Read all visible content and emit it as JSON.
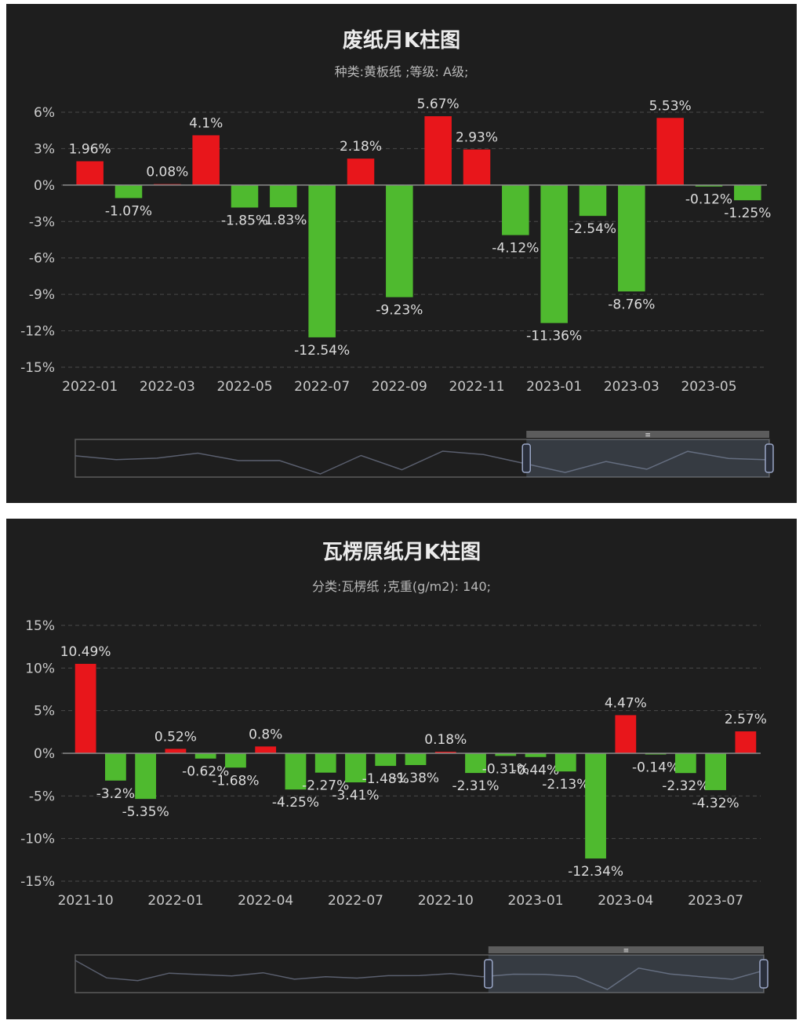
{
  "chart_data": [
    {
      "type": "bar",
      "title": "废纸月K柱图",
      "subtitle": "种类:黄板纸 ;等级: A级;",
      "categories": [
        "2022-01",
        "2022-02",
        "2022-03",
        "2022-04",
        "2022-05",
        "2022-06",
        "2022-07",
        "2022-08",
        "2022-09",
        "2022-10",
        "2022-11",
        "2022-12",
        "2023-01",
        "2023-02",
        "2023-03",
        "2023-04",
        "2023-05",
        "2023-06"
      ],
      "values": [
        1.96,
        -1.07,
        0.08,
        4.1,
        -1.85,
        -1.83,
        -12.54,
        2.18,
        -9.23,
        5.67,
        2.93,
        -4.12,
        -11.36,
        -2.54,
        -8.76,
        5.53,
        -0.12,
        -1.25
      ],
      "data_labels": [
        "1.96%",
        "-1.07%",
        "0.08%",
        "4.1%",
        "-1.85%",
        "-1.83%",
        "-12.54%",
        "2.18%",
        "-9.23%",
        "5.67%",
        "2.93%",
        "-4.12%",
        "-11.36%",
        "-2.54%",
        "-8.76%",
        "5.53%",
        "-0.12%",
        "-1.25%"
      ],
      "x_tick_labels": [
        "2022-01",
        "2022-03",
        "2022-05",
        "2022-07",
        "2022-09",
        "2022-11",
        "2023-01",
        "2023-03",
        "2023-05"
      ],
      "y_ticks": [
        6,
        3,
        0,
        -3,
        -6,
        -9,
        -12,
        -15
      ],
      "y_tick_labels": [
        "6%",
        "3%",
        "0%",
        "-3%",
        "-6%",
        "-9%",
        "-12%",
        "-15%"
      ],
      "ylim": [
        -15,
        6
      ],
      "grid": true,
      "legend": "none",
      "colors": {
        "positive": "#e8161b",
        "negative": "#4fba2f"
      },
      "zoom_window": {
        "start": 0.65,
        "end": 1.0
      }
    },
    {
      "type": "bar",
      "title": "瓦楞原纸月K柱图",
      "subtitle": "分类:瓦楞纸 ;克重(g/m2): 140;",
      "categories": [
        "2021-10",
        "2021-11",
        "2021-12",
        "2022-01",
        "2022-02",
        "2022-03",
        "2022-04",
        "2022-05",
        "2022-06",
        "2022-07",
        "2022-08",
        "2022-09",
        "2022-10",
        "2022-11",
        "2022-12",
        "2023-01",
        "2023-02",
        "2023-03",
        "2023-04",
        "2023-05",
        "2023-06",
        "2023-07",
        "2023-08"
      ],
      "values": [
        10.49,
        -3.2,
        -5.35,
        0.52,
        -0.62,
        -1.68,
        0.8,
        -4.25,
        -2.27,
        -3.41,
        -1.48,
        -1.38,
        0.18,
        -2.31,
        -0.31,
        -0.44,
        -2.13,
        -12.34,
        4.47,
        -0.14,
        -2.32,
        -4.32,
        2.57
      ],
      "data_labels": [
        "10.49%",
        "-3.2%",
        "-5.35%",
        "0.52%",
        "-0.62%",
        "-1.68%",
        "0.8%",
        "-4.25%",
        "-2.27%",
        "-3.41%",
        "-1.48%",
        "-1.38%",
        "0.18%",
        "-2.31%",
        "-0.31%",
        "-0.44%",
        "-2.13%",
        "-12.34%",
        "4.47%",
        "-0.14%",
        "-2.32%",
        "-4.32%",
        "2.57%"
      ],
      "x_tick_labels": [
        "2021-10",
        "2022-01",
        "2022-04",
        "2022-07",
        "2022-10",
        "2023-01",
        "2023-04",
        "2023-07"
      ],
      "y_ticks": [
        15,
        10,
        5,
        0,
        -5,
        -10,
        -15
      ],
      "y_tick_labels": [
        "15%",
        "10%",
        "5%",
        "0%",
        "-5%",
        "-10%",
        "-15%"
      ],
      "ylim": [
        -15,
        15
      ],
      "grid": true,
      "legend": "none",
      "colors": {
        "positive": "#e8161b",
        "negative": "#4fba2f"
      },
      "zoom_window": {
        "start": 0.6,
        "end": 1.0
      }
    }
  ],
  "zoom_handle_glyph": "≡"
}
